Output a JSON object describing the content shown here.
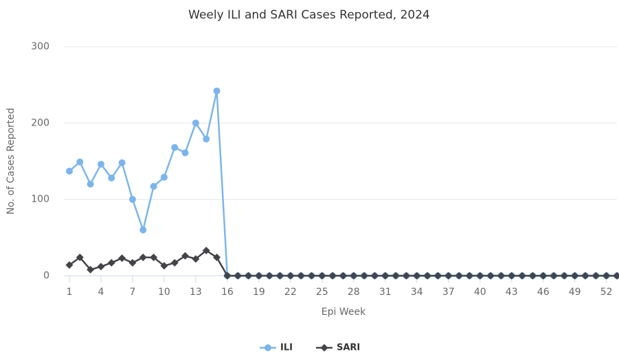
{
  "chart_data": {
    "type": "line",
    "title": "Weely ILI and SARI Cases Reported, 2024",
    "x_label": "Epi Week",
    "y_label": "No. of Cases Reported",
    "x": [
      1,
      2,
      3,
      4,
      5,
      6,
      7,
      8,
      9,
      10,
      11,
      12,
      13,
      14,
      15,
      16,
      17,
      18,
      19,
      20,
      21,
      22,
      23,
      24,
      25,
      26,
      27,
      28,
      29,
      30,
      31,
      32,
      33,
      34,
      35,
      36,
      37,
      38,
      39,
      40,
      41,
      42,
      43,
      44,
      45,
      46,
      47,
      48,
      49,
      50,
      51,
      52,
      53
    ],
    "xlim": [
      0.5,
      53
    ],
    "xticks": [
      1,
      4,
      7,
      10,
      13,
      16,
      19,
      22,
      25,
      28,
      31,
      34,
      37,
      40,
      43,
      46,
      49,
      52
    ],
    "ylim": [
      0,
      300
    ],
    "yticks": [
      0,
      100,
      200,
      300
    ],
    "grid": true,
    "legend": "bottom",
    "series": [
      {
        "name": "ILI",
        "color": "#7cb5ec",
        "marker": "circle",
        "values": [
          137,
          149,
          120,
          146,
          128,
          148,
          100,
          60,
          117,
          129,
          168,
          161,
          200,
          179,
          242,
          0,
          0,
          0,
          0,
          0,
          0,
          0,
          0,
          0,
          0,
          0,
          0,
          0,
          0,
          0,
          0,
          0,
          0,
          0,
          0,
          0,
          0,
          0,
          0,
          0,
          0,
          0,
          0,
          0,
          0,
          0,
          0,
          0,
          0,
          0,
          0,
          0,
          0
        ]
      },
      {
        "name": "SARI",
        "color": "#434348",
        "marker": "diamond",
        "values": [
          14,
          24,
          8,
          12,
          17,
          23,
          17,
          24,
          24,
          13,
          17,
          26,
          22,
          33,
          24,
          0,
          0,
          0,
          0,
          0,
          0,
          0,
          0,
          0,
          0,
          0,
          0,
          0,
          0,
          0,
          0,
          0,
          0,
          0,
          0,
          0,
          0,
          0,
          0,
          0,
          0,
          0,
          0,
          0,
          0,
          0,
          0,
          0,
          0,
          0,
          0,
          0,
          0
        ]
      }
    ]
  }
}
